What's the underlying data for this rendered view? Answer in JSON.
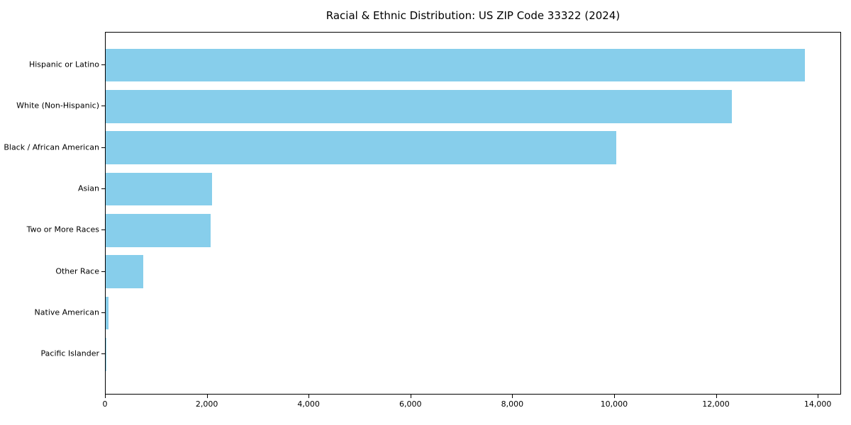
{
  "title": "Racial & Ethnic Distribution: US ZIP Code 33322 (2024)",
  "chart_data": {
    "type": "bar",
    "orientation": "horizontal",
    "title": "Racial & Ethnic Distribution: US ZIP Code 33322 (2024)",
    "xlabel": "",
    "ylabel": "",
    "categories": [
      "Hispanic or Latino",
      "White (Non-Hispanic)",
      "Black / African American",
      "Asian",
      "Two or More Races",
      "Other Race",
      "Native American",
      "Pacific Islander"
    ],
    "values": [
      13740,
      12300,
      10030,
      2090,
      2060,
      745,
      55,
      10
    ],
    "x_ticks": [
      0,
      2000,
      4000,
      6000,
      8000,
      10000,
      12000,
      14000
    ],
    "x_tick_labels": [
      "0",
      "2,000",
      "4,000",
      "6,000",
      "8,000",
      "10,000",
      "12,000",
      "14,000"
    ],
    "xlim": [
      0,
      14430
    ],
    "grid": false,
    "legend": null,
    "bar_color": "#87CEEB",
    "axis_color": "#000000",
    "text_color": "#000000",
    "background_color": "#FFFFFF"
  }
}
